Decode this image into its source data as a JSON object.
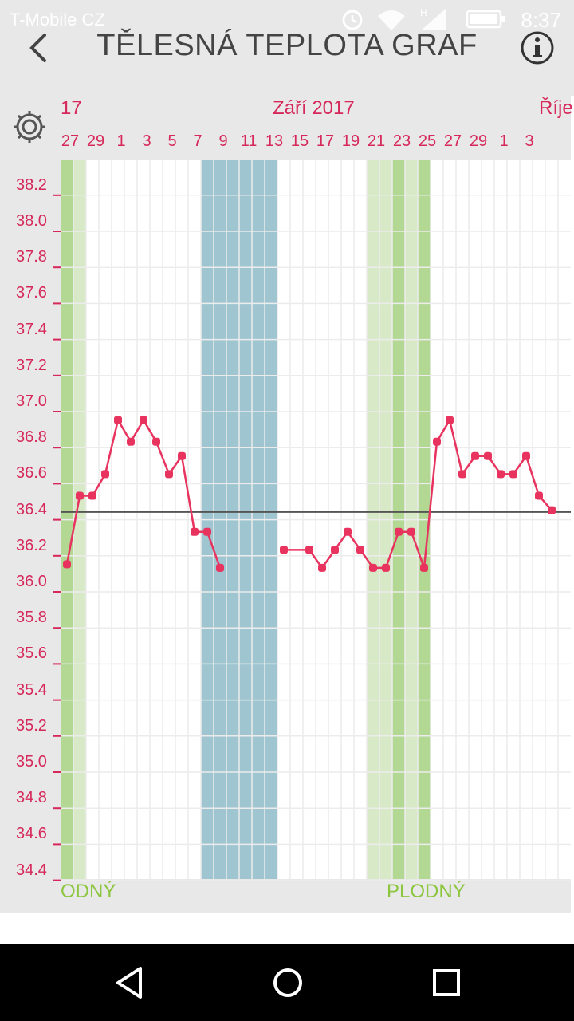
{
  "status": {
    "carrier": "T-Mobile CZ",
    "time": "8:37"
  },
  "header": {
    "title": "TĚLESNÁ TEPLOTA GRAF"
  },
  "chart_header": {
    "month_left": "17",
    "month_center": "Září 2017",
    "month_right": "Říje",
    "day_labels": [
      "27",
      "29",
      "1",
      "3",
      "5",
      "7",
      "9",
      "11",
      "13",
      "15",
      "17",
      "19",
      "21",
      "23",
      "25",
      "27",
      "29",
      "1",
      "3"
    ]
  },
  "fertile_labels": {
    "left": "ODNÝ",
    "right": "PLODNÝ"
  },
  "colors": {
    "line": "#e8335f",
    "fertile_light": "#d8e9c8",
    "fertile_dark": "#b2d894",
    "period": "#9fc5d1",
    "grid": "#ececec",
    "cover_line": "#555555"
  },
  "icons": {
    "back": "chevron-left-icon",
    "info": "info-icon",
    "settings": "gear-icon",
    "nav_back": "triangle-back-icon",
    "nav_home": "circle-home-icon",
    "nav_recents": "square-recents-icon"
  },
  "chart_data": {
    "type": "line",
    "title": "",
    "xlabel": "",
    "ylabel": "",
    "ylim": [
      34.4,
      38.2
    ],
    "yticks": [
      "38.2",
      "38.0",
      "37.8",
      "37.6",
      "37.4",
      "37.2",
      "37.0",
      "36.8",
      "36.6",
      "36.4",
      "36.2",
      "36.0",
      "35.8",
      "35.6",
      "35.4",
      "35.2",
      "35.0",
      "34.8",
      "34.6",
      "34.4"
    ],
    "coverline": 36.39,
    "series": [
      {
        "segments": [
          [
            {
              "x": "2017-08-26",
              "y": 36.1
            },
            {
              "x": "2017-08-27",
              "y": 36.48
            },
            {
              "x": "2017-08-28",
              "y": 36.48
            },
            {
              "x": "2017-08-29",
              "y": 36.6
            },
            {
              "x": "2017-08-30",
              "y": 36.9
            },
            {
              "x": "2017-08-31",
              "y": 36.78
            },
            {
              "x": "2017-09-01",
              "y": 36.9
            },
            {
              "x": "2017-09-02",
              "y": 36.78
            },
            {
              "x": "2017-09-03",
              "y": 36.6
            },
            {
              "x": "2017-09-04",
              "y": 36.7
            },
            {
              "x": "2017-09-05",
              "y": 36.28
            },
            {
              "x": "2017-09-06",
              "y": 36.28
            },
            {
              "x": "2017-09-07",
              "y": 36.08
            }
          ],
          [
            {
              "x": "2017-09-12",
              "y": 36.18
            },
            {
              "x": "2017-09-14",
              "y": 36.18
            },
            {
              "x": "2017-09-15",
              "y": 36.08
            },
            {
              "x": "2017-09-16",
              "y": 36.18
            },
            {
              "x": "2017-09-17",
              "y": 36.28
            },
            {
              "x": "2017-09-18",
              "y": 36.18
            },
            {
              "x": "2017-09-19",
              "y": 36.08
            },
            {
              "x": "2017-09-20",
              "y": 36.08
            },
            {
              "x": "2017-09-21",
              "y": 36.28
            },
            {
              "x": "2017-09-22",
              "y": 36.28
            },
            {
              "x": "2017-09-23",
              "y": 36.08
            },
            {
              "x": "2017-09-24",
              "y": 36.78
            },
            {
              "x": "2017-09-25",
              "y": 36.9
            },
            {
              "x": "2017-09-26",
              "y": 36.6
            },
            {
              "x": "2017-09-27",
              "y": 36.7
            },
            {
              "x": "2017-09-28",
              "y": 36.7
            },
            {
              "x": "2017-09-29",
              "y": 36.6
            },
            {
              "x": "2017-09-30",
              "y": 36.6
            },
            {
              "x": "2017-10-01",
              "y": 36.7
            },
            {
              "x": "2017-10-02",
              "y": 36.48
            },
            {
              "x": "2017-10-03",
              "y": 36.4
            }
          ]
        ]
      }
    ],
    "bands": [
      {
        "type": "fertile",
        "from": "2017-08-26",
        "to": "2017-08-27",
        "peak": "2017-08-26"
      },
      {
        "type": "period",
        "from": "2017-09-06",
        "to": "2017-09-11"
      },
      {
        "type": "fertile",
        "from": "2017-09-19",
        "to": "2017-09-23",
        "peak_days": [
          "2017-09-21",
          "2017-09-23"
        ]
      }
    ],
    "grid": true
  }
}
